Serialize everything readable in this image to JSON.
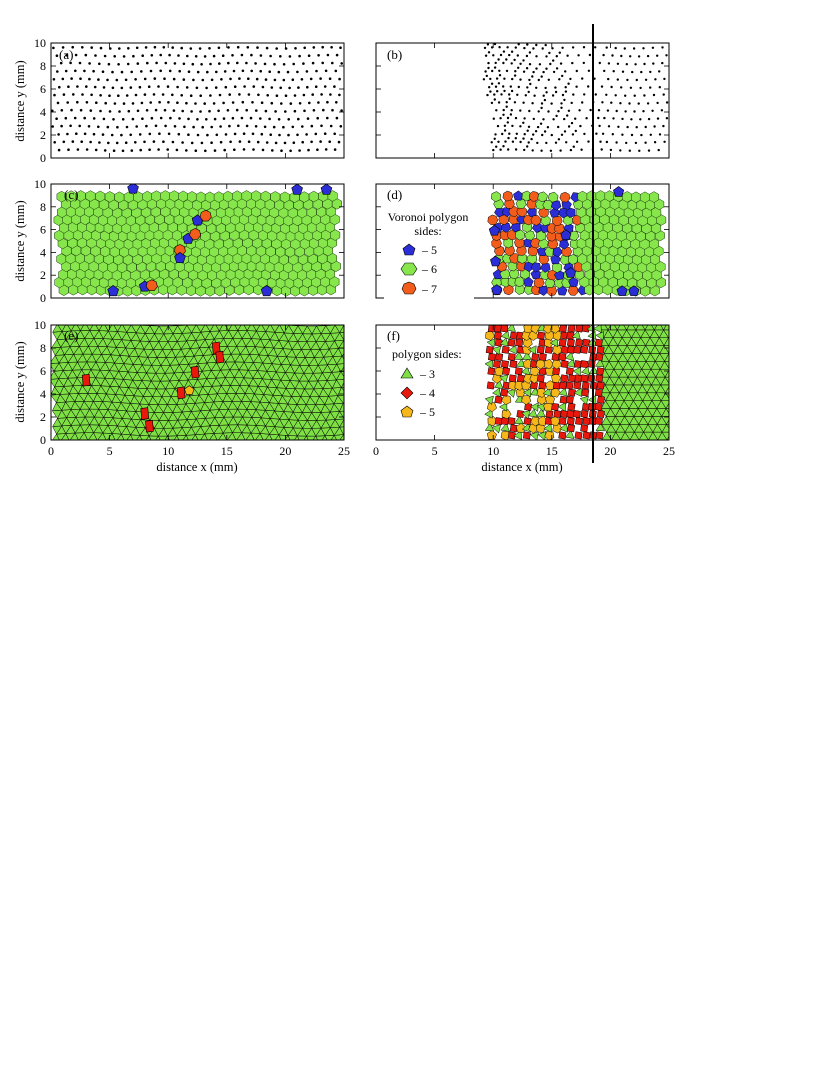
{
  "figure": {
    "xlabel": "distance x (mm)",
    "ylabel": "distance y (mm)",
    "xlim": [
      0,
      25
    ],
    "ylim": [
      0,
      10
    ],
    "xticks": [
      0,
      5,
      10,
      15,
      20,
      25
    ],
    "yticks": [
      0,
      2,
      4,
      6,
      8,
      10
    ],
    "marker_line_x": 18.8
  },
  "chart_data": [
    {
      "type": "scatter",
      "panel": "(a)",
      "content": "particle positions, triangular lattice",
      "x_range": [
        0,
        25
      ],
      "y_range": [
        0,
        10
      ],
      "ylabel": "distance y (mm)"
    },
    {
      "type": "scatter",
      "panel": "(b)",
      "content": "particle positions, compressed region",
      "x_range": [
        9.3,
        25
      ],
      "y_range": [
        0,
        10
      ]
    },
    {
      "type": "scatter",
      "panel": "(c)",
      "content": "Voronoi tessellation",
      "ylabel": "distance y (mm)",
      "defects": [
        {
          "x": 7,
          "y": 9.6,
          "sides": 5
        },
        {
          "x": 21,
          "y": 9.5,
          "sides": 5
        },
        {
          "x": 23.5,
          "y": 9.5,
          "sides": 5
        },
        {
          "x": 12.5,
          "y": 6.8,
          "sides": 5
        },
        {
          "x": 13.2,
          "y": 7.2,
          "sides": 7
        },
        {
          "x": 11.7,
          "y": 5.2,
          "sides": 5
        },
        {
          "x": 12.3,
          "y": 5.6,
          "sides": 7
        },
        {
          "x": 11,
          "y": 4.2,
          "sides": 7
        },
        {
          "x": 11,
          "y": 3.5,
          "sides": 5
        },
        {
          "x": 5.3,
          "y": 0.6,
          "sides": 5
        },
        {
          "x": 8,
          "y": 1,
          "sides": 5
        },
        {
          "x": 8.6,
          "y": 1.1,
          "sides": 7
        },
        {
          "x": 18.4,
          "y": 0.6,
          "sides": 5
        }
      ]
    },
    {
      "type": "scatter",
      "panel": "(d)",
      "content": "Voronoi tessellation, compressed region",
      "legend": {
        "title_line1": "Voronoi polygon",
        "title_line2": "sides:",
        "entries": [
          {
            "label": "– 5",
            "color": "#2b2ed6"
          },
          {
            "label": "– 6",
            "color": "#86e64c"
          },
          {
            "label": "– 7",
            "color": "#f25d1c"
          }
        ]
      }
    },
    {
      "type": "scatter",
      "panel": "(e)",
      "content": "Delaunay triangulation",
      "xlabel": "distance x (mm)",
      "ylabel": "distance y (mm)"
    },
    {
      "type": "scatter",
      "panel": "(f)",
      "content": "polygon decomposition, compressed region",
      "xlabel": "distance x (mm)",
      "legend": {
        "title": "polygon sides:",
        "entries": [
          {
            "label": "– 3",
            "color": "#7ee044"
          },
          {
            "label": "– 4",
            "color": "#e8180c"
          },
          {
            "label": "– 5",
            "color": "#f5b71a"
          }
        ]
      }
    }
  ],
  "colors": {
    "hex6": "#86e64c",
    "pent": "#2b2ed6",
    "hept": "#f25d1c",
    "tri": "#7ee044",
    "quad": "#e8180c",
    "penta_f": "#f5b71a"
  }
}
